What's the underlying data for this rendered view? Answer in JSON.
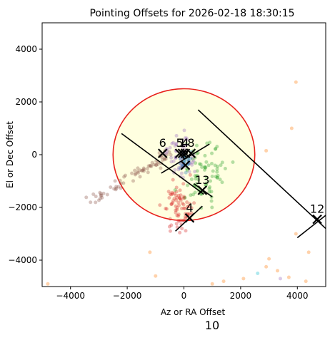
{
  "chart_data": {
    "type": "scatter",
    "title": "Pointing Offsets for 2026-02-18 18:30:15",
    "xlabel": "Az or RA Offset",
    "ylabel": "El or Dec Offset",
    "xlim": [
      -5000,
      5000
    ],
    "ylim": [
      -5000,
      5000
    ],
    "xticks": [
      -4000,
      -2000,
      0,
      2000,
      4000
    ],
    "yticks": [
      -4000,
      -2000,
      0,
      2000,
      4000
    ],
    "xtick_labels": [
      "−4000",
      "−2000",
      "0",
      "2000",
      "4000"
    ],
    "ytick_labels": [
      "−4000",
      "−2000",
      "0",
      "2000",
      "4000"
    ],
    "grid": false,
    "beam_circle": {
      "center": [
        0,
        0
      ],
      "radius": 2500,
      "fill": "#ffffe0",
      "edge": "#e8201c"
    },
    "markers": [
      {
        "label": "6",
        "x": -750,
        "y": 50
      },
      {
        "label": "5",
        "x": -150,
        "y": 50
      },
      {
        "label": "1",
        "x": -50,
        "y": 50
      },
      {
        "label": "4",
        "x": 50,
        "y": 50
      },
      {
        "label": "8",
        "x": 250,
        "y": 50
      },
      {
        "label": "3",
        "x": 50,
        "y": -400
      },
      {
        "label": "13",
        "x": 650,
        "y": -1350
      },
      {
        "label": "4",
        "x": 200,
        "y": -2400
      },
      {
        "label": "12",
        "x": 4700,
        "y": -2450
      }
    ],
    "outside_label": "10",
    "cluster_colors": {
      "brown": "#8c564b",
      "red": "#d62728",
      "green": "#2ca02c",
      "orange": "#ff7f0e",
      "purple": "#9467bd",
      "blue": "#1f77b4",
      "cyan": "#17becf"
    }
  }
}
